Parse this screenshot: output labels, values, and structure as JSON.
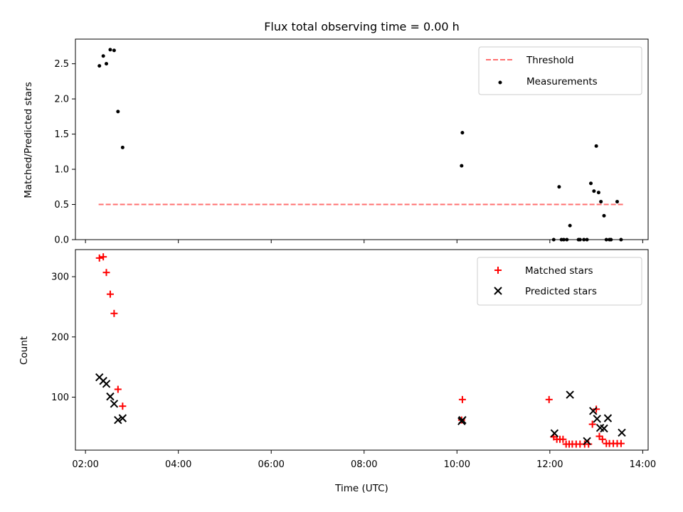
{
  "title": "Flux total observing time = 0.00 h",
  "xlabel": "Time (UTC)",
  "colors": {
    "threshold": "#ff7070",
    "measurement": "#000000",
    "matched": "#ff0000",
    "predicted": "#000000"
  },
  "chart_data": [
    {
      "type": "scatter",
      "panel": "top",
      "ylabel": "Matched/Predicted stars",
      "xlim": [
        "01:47",
        "14:07"
      ],
      "ylim": [
        0,
        2.85
      ],
      "x_ticks": [
        "02:00",
        "04:00",
        "06:00",
        "08:00",
        "10:00",
        "12:00",
        "14:00"
      ],
      "y_ticks": [
        "0.0",
        "0.5",
        "1.0",
        "1.5",
        "2.0",
        "2.5"
      ],
      "legend_position": "top-right",
      "threshold": {
        "name": "Threshold",
        "value": 0.5,
        "x_range": [
          "02:17",
          "13:37"
        ]
      },
      "series": [
        {
          "name": "Measurements",
          "x": [
            "02:18",
            "02:23",
            "02:27",
            "02:32",
            "02:37",
            "02:42",
            "02:48",
            "10:06",
            "10:07",
            "12:05",
            "12:12",
            "12:15",
            "12:18",
            "12:22",
            "12:26",
            "12:37",
            "12:39",
            "12:44",
            "12:48",
            "12:53",
            "12:57",
            "13:00",
            "13:03",
            "13:06",
            "13:10",
            "13:13",
            "13:17",
            "13:19",
            "13:27",
            "13:32"
          ],
          "y": [
            2.47,
            2.61,
            2.5,
            2.7,
            2.69,
            1.82,
            1.31,
            1.05,
            1.52,
            0.0,
            0.75,
            0.0,
            0.0,
            0.0,
            0.2,
            0.0,
            0.0,
            0.0,
            0.0,
            0.8,
            0.69,
            1.33,
            0.67,
            0.54,
            0.34,
            0.0,
            0.0,
            0.0,
            0.54,
            0.0
          ]
        }
      ]
    },
    {
      "type": "scatter",
      "panel": "bottom",
      "ylabel": "Count",
      "xlim": [
        "01:47",
        "14:07"
      ],
      "ylim": [
        12,
        345
      ],
      "x_ticks": [
        "02:00",
        "04:00",
        "06:00",
        "08:00",
        "10:00",
        "12:00",
        "14:00"
      ],
      "y_ticks": [
        "100",
        "200",
        "300"
      ],
      "legend_position": "top-right",
      "series": [
        {
          "name": "Matched stars",
          "marker": "+",
          "x": [
            "02:18",
            "02:23",
            "02:27",
            "02:32",
            "02:37",
            "02:42",
            "02:48",
            "10:06",
            "10:07",
            "11:59",
            "12:05",
            "12:09",
            "12:13",
            "12:17",
            "12:21",
            "12:25",
            "12:29",
            "12:34",
            "12:39",
            "12:45",
            "12:50",
            "12:55",
            "13:00",
            "13:04",
            "13:08",
            "13:13",
            "13:17",
            "13:22",
            "13:27",
            "13:32"
          ],
          "y": [
            331,
            333,
            307,
            271,
            239,
            113,
            85,
            62,
            96,
            96,
            34,
            30,
            30,
            30,
            22,
            22,
            22,
            22,
            22,
            22,
            22,
            55,
            80,
            35,
            30,
            23,
            23,
            23,
            23,
            23
          ]
        },
        {
          "name": "Predicted stars",
          "marker": "x",
          "x": [
            "02:18",
            "02:23",
            "02:27",
            "02:32",
            "02:37",
            "02:42",
            "02:48",
            "10:06",
            "10:07",
            "12:06",
            "12:26",
            "12:48",
            "12:56",
            "13:01",
            "13:05",
            "13:10",
            "13:15",
            "13:33"
          ],
          "y": [
            133,
            127,
            122,
            101,
            89,
            62,
            65,
            60,
            62,
            40,
            104,
            27,
            77,
            64,
            49,
            48,
            65,
            41
          ]
        }
      ]
    }
  ]
}
